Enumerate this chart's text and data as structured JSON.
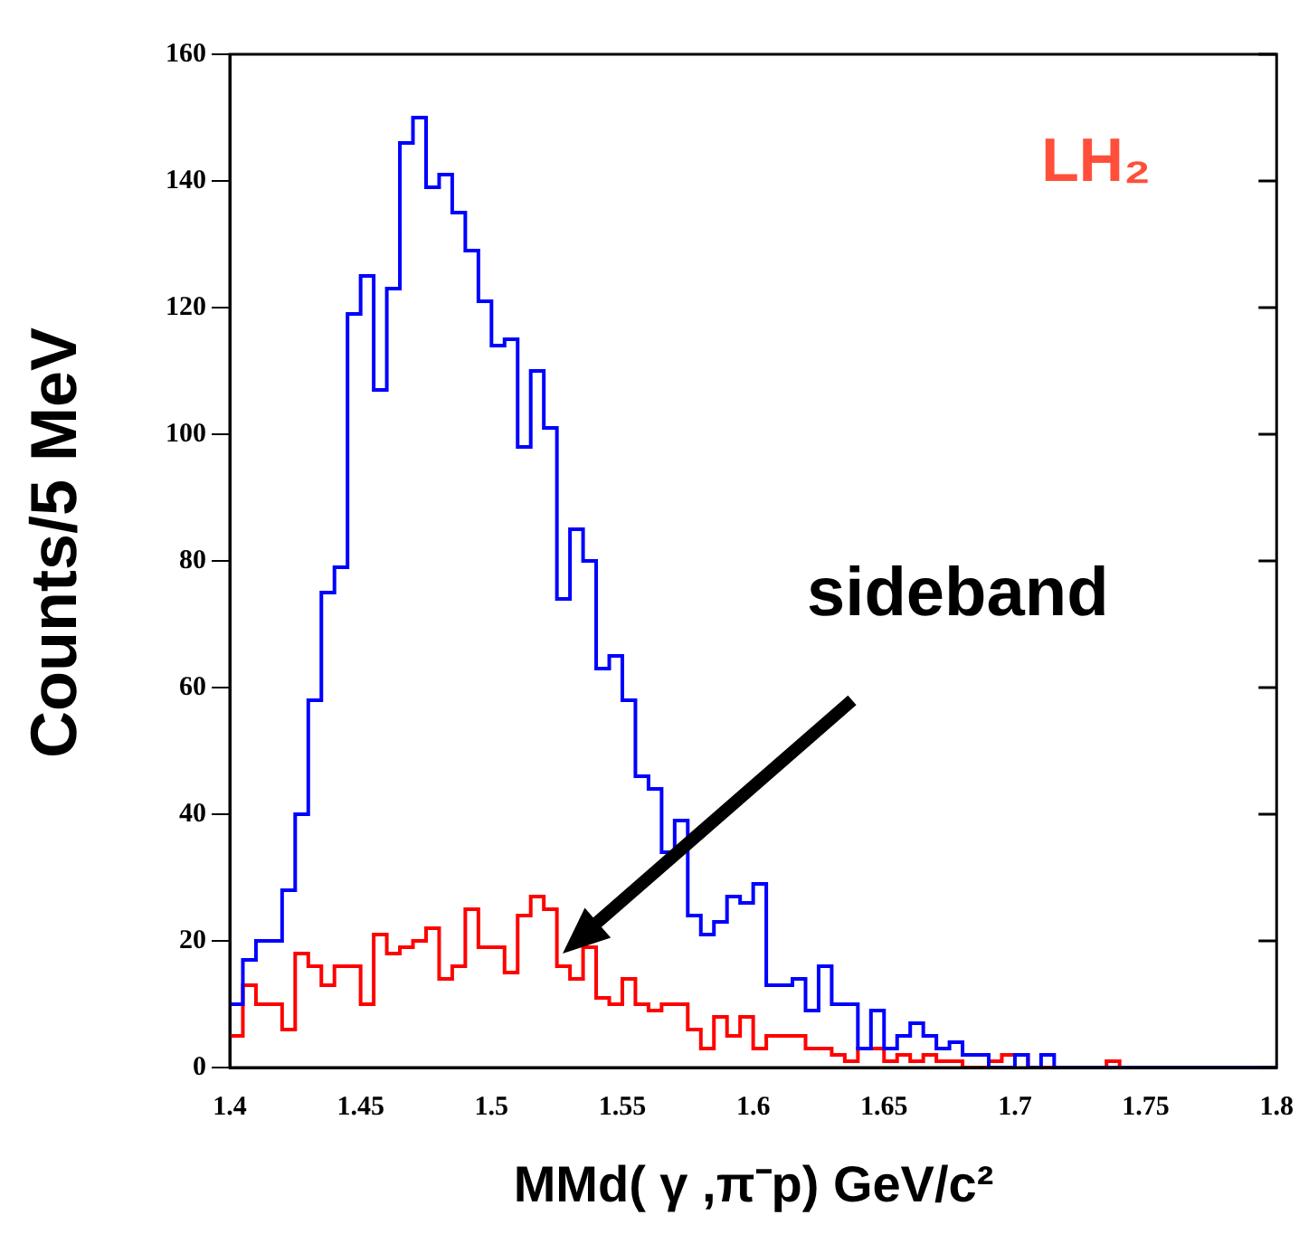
{
  "chart_data": {
    "type": "histogram",
    "xlabel": "MMd( γ ,π⁻p) GeV/c²",
    "ylabel": "Counts/5 MeV",
    "bins": [
      1.4,
      1.405,
      1.41,
      1.415,
      1.42,
      1.425,
      1.43,
      1.435,
      1.44,
      1.445,
      1.45,
      1.455,
      1.46,
      1.465,
      1.47,
      1.475,
      1.48,
      1.485,
      1.49,
      1.495,
      1.5,
      1.505,
      1.51,
      1.515,
      1.52,
      1.525,
      1.53,
      1.535,
      1.54,
      1.545,
      1.55,
      1.555,
      1.56,
      1.565,
      1.57,
      1.575,
      1.58,
      1.585,
      1.59,
      1.595,
      1.6,
      1.605,
      1.61,
      1.615,
      1.62,
      1.625,
      1.63,
      1.635,
      1.64,
      1.645,
      1.65,
      1.655,
      1.66,
      1.665,
      1.67,
      1.675,
      1.68,
      1.685,
      1.69,
      1.695,
      1.7,
      1.705,
      1.71,
      1.715,
      1.72,
      1.725,
      1.73,
      1.735,
      1.74,
      1.745,
      1.75,
      1.755,
      1.76,
      1.765,
      1.77,
      1.775,
      1.78,
      1.785,
      1.79,
      1.795,
      1.8
    ],
    "series": [
      {
        "color": "#0000ff",
        "values": [
          10,
          17,
          20,
          20,
          28,
          40,
          58,
          75,
          79,
          119,
          125,
          107,
          123,
          146,
          150,
          139,
          141,
          135,
          129,
          121,
          114,
          115,
          98,
          110,
          101,
          74,
          85,
          80,
          63,
          65,
          58,
          46,
          44,
          34,
          39,
          24,
          21,
          23,
          27,
          26,
          29,
          13,
          13,
          14,
          9,
          16,
          10,
          10,
          3,
          9,
          3,
          5,
          7,
          5,
          3,
          4,
          2,
          2,
          0,
          0,
          2,
          0,
          2,
          0,
          0,
          0,
          0,
          0,
          0,
          0,
          0,
          0,
          0,
          0,
          0,
          0,
          0,
          0,
          0,
          0
        ]
      },
      {
        "color": "#ff0000",
        "values": [
          5,
          13,
          10,
          10,
          6,
          18,
          16,
          13,
          16,
          16,
          10,
          21,
          18,
          19,
          20,
          22,
          14,
          16,
          25,
          19,
          19,
          15,
          24,
          27,
          25,
          16,
          14,
          19,
          11,
          10,
          14,
          10,
          9,
          10,
          10,
          6,
          3,
          8,
          5,
          8,
          3,
          5,
          5,
          5,
          3,
          3,
          2,
          1,
          3,
          3,
          1,
          2,
          1,
          2,
          1,
          1,
          0,
          0,
          1,
          2,
          2,
          0,
          0,
          0,
          0,
          0,
          0,
          1,
          0,
          0,
          0,
          0,
          0,
          0,
          0,
          0,
          0,
          0,
          0,
          0
        ]
      }
    ],
    "xlim": [
      1.4,
      1.8
    ],
    "xticks": [
      1.4,
      1.45,
      1.5,
      1.55,
      1.6,
      1.65,
      1.7,
      1.75,
      1.8
    ],
    "ylim": [
      0,
      160
    ],
    "yticks": [
      0,
      20,
      40,
      60,
      80,
      100,
      120,
      140,
      160
    ],
    "grid": false,
    "legend": false,
    "annotations": [
      {
        "text": "LH₂"
      },
      {
        "text": "sideband"
      }
    ]
  }
}
